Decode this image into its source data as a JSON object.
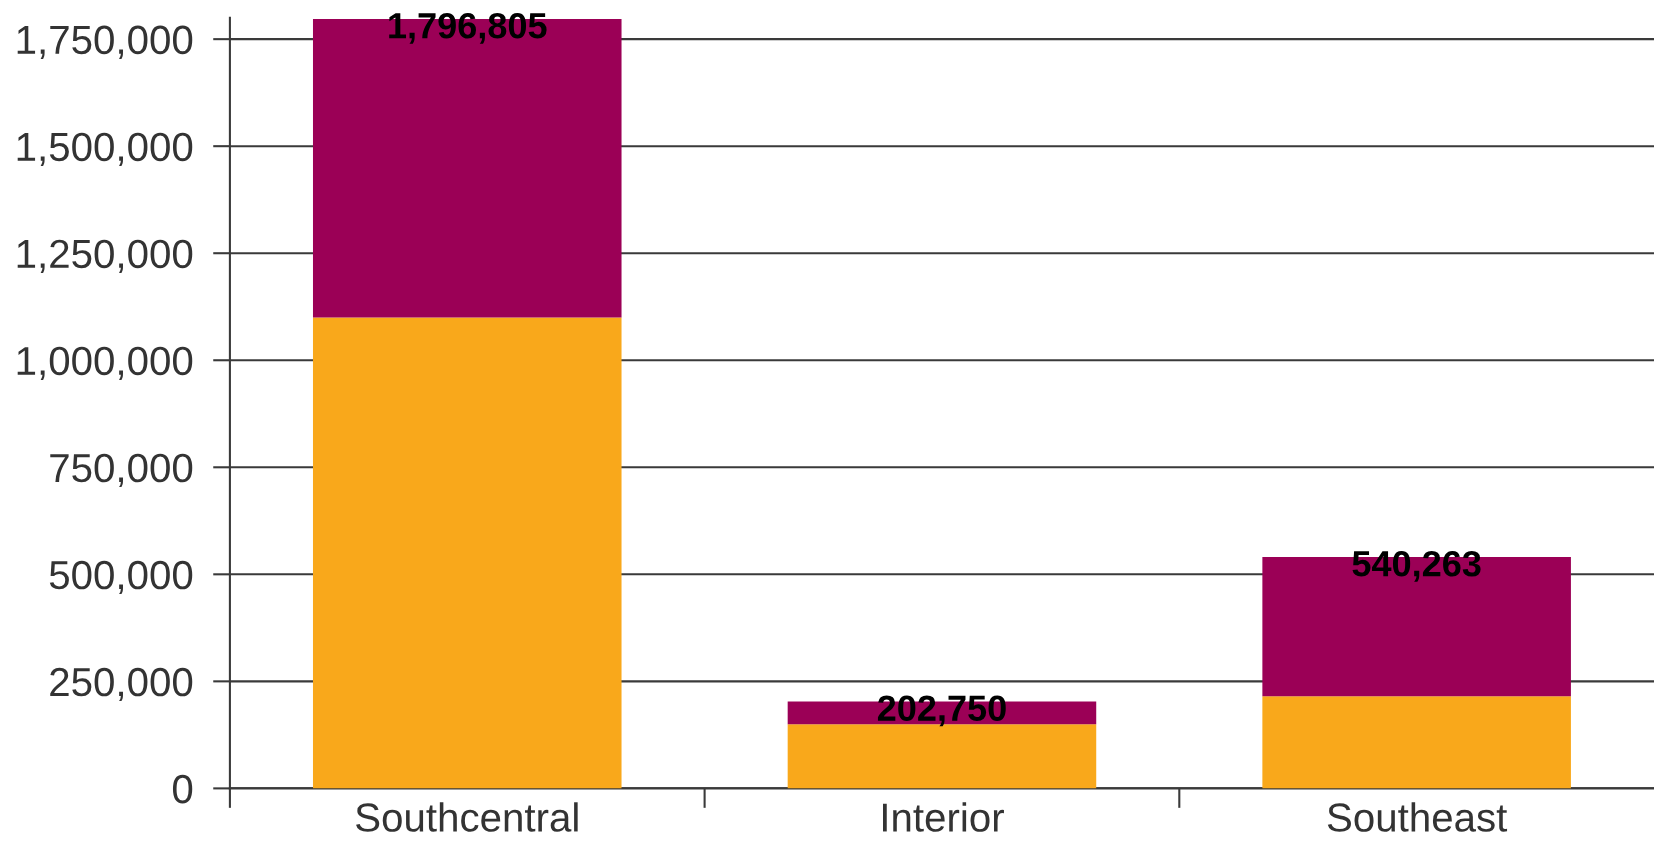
{
  "chart_data": {
    "type": "bar",
    "stacked": true,
    "categories": [
      "Southcentral",
      "Interior",
      "Southeast"
    ],
    "series": [
      {
        "color": "#f9a81b",
        "values": [
          1100000,
          150000,
          215000
        ]
      },
      {
        "color": "#9b0056",
        "values": [
          696805,
          52750,
          325263
        ]
      }
    ],
    "totals": [
      "1,796,805",
      "202,750",
      "540,263"
    ],
    "ylim": [
      0,
      1800000
    ],
    "yticks": [
      0,
      {
        "value": 250000,
        "label": "250,000"
      },
      {
        "value": 500000,
        "label": "500,000"
      },
      {
        "value": 750000,
        "label": "750,000"
      },
      {
        "value": 1000000,
        "label": "1,000,000"
      },
      {
        "value": 1250000,
        "label": "1,250,000"
      },
      {
        "value": 1500000,
        "label": "1,500,000"
      },
      {
        "value": 1750000,
        "label": "1,750,000"
      }
    ],
    "grid": "y",
    "legend": false
  }
}
